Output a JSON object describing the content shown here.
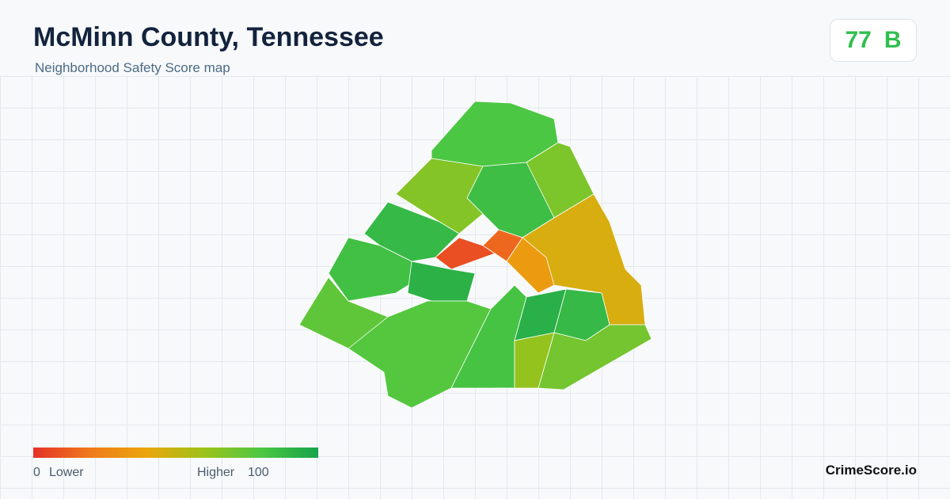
{
  "header": {
    "title": "McMinn County, Tennessee",
    "subtitle": "Neighborhood Safety Score map"
  },
  "badge": {
    "score": 77,
    "grade": "B"
  },
  "map": {
    "scores": [
      80,
      68,
      66,
      85,
      88,
      8,
      15,
      45,
      35,
      84,
      92,
      75,
      78,
      82,
      93,
      88,
      70,
      62
    ]
  },
  "legend": {
    "min": 0,
    "max": 100,
    "min_label": "Lower",
    "max_label": "Higher",
    "colors": [
      "#e53228",
      "#f07a1a",
      "#eaa60c",
      "#9cc31a",
      "#4cc743",
      "#16a34a"
    ]
  },
  "footer": {
    "brand": "CrimeScore.io"
  }
}
